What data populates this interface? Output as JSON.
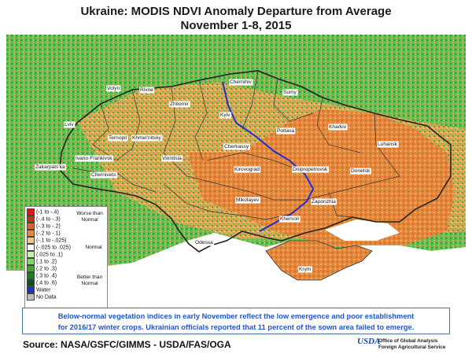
{
  "title": "Ukraine: MODIS NDVI Anomaly  Departure from Average",
  "subtitle": "November 1-8, 2015",
  "oblasts": [
    {
      "name": "Volyn"
    },
    {
      "name": "Rivne"
    },
    {
      "name": "Zhitomir"
    },
    {
      "name": "Chernihiv"
    },
    {
      "name": "Sumy"
    },
    {
      "name": "Kyiv"
    },
    {
      "name": "Lviv"
    },
    {
      "name": "Ternopil"
    },
    {
      "name": "Khmel'nitsky"
    },
    {
      "name": "Poltava"
    },
    {
      "name": "Kharkiv"
    },
    {
      "name": "Ivano-Frankivsk"
    },
    {
      "name": "Vinnitsia"
    },
    {
      "name": "Cherkassy"
    },
    {
      "name": "Luhansk"
    },
    {
      "name": "Zakarpats'ka"
    },
    {
      "name": "Chernivets"
    },
    {
      "name": "Kirovograd"
    },
    {
      "name": "Dnipropetrovsk"
    },
    {
      "name": "Donetsk"
    },
    {
      "name": "Mikolayev"
    },
    {
      "name": "Zaporizhia"
    },
    {
      "name": "Kherson"
    },
    {
      "name": "Odessa"
    },
    {
      "name": "Krym"
    }
  ],
  "legend": {
    "items": [
      {
        "label": "(-1 to -.4)",
        "color": "#d7191c"
      },
      {
        "label": "(-.4 to -.3)",
        "color": "#b03a1a"
      },
      {
        "label": "(-.3 to -.2)",
        "color": "#d8662a"
      },
      {
        "label": "(-.2 to -.1)",
        "color": "#e8893a"
      },
      {
        "label": "(-.1 to -.025)",
        "color": "#f3c58b"
      },
      {
        "label": "(-.025 to .025)",
        "color": "#ffffff"
      },
      {
        "label": "(.025 to .1)",
        "color": "#c7f0b0"
      },
      {
        "label": "(.1 to .2)",
        "color": "#86d864"
      },
      {
        "label": "(.2 to .3)",
        "color": "#3aa832"
      },
      {
        "label": "(.3 to .4)",
        "color": "#1e7a28"
      },
      {
        "label": "(.4 to .6)",
        "color": "#0d4f1c"
      },
      {
        "label": "Water",
        "color": "#1f2fd0"
      },
      {
        "label": "No Data",
        "color": "#bdbdbd"
      }
    ],
    "worse_label": "Worse than Normal",
    "normal_label": "Normal",
    "better_label": "Better than Normal"
  },
  "caption": {
    "line1": "Below-normal vegetation indices in early November reflect the low emergence and poor establishment",
    "line2": "for 2016/17 winter crops.  Ukrainian officials reported that 11 percent of the sown area failed to emerge."
  },
  "source": "Source:  NASA/GSFC/GIMMS - USDA/FAS/OGA",
  "agency": {
    "logo": "USDA",
    "line1": "Office of Global Analysis",
    "line2": "Foreign Agricultural Service"
  },
  "colors": {
    "sea": "#ffffff",
    "border": "#333333",
    "river": "#1f2fd0",
    "green_land": "#58b94a",
    "orange_land": "#e08a3a"
  }
}
